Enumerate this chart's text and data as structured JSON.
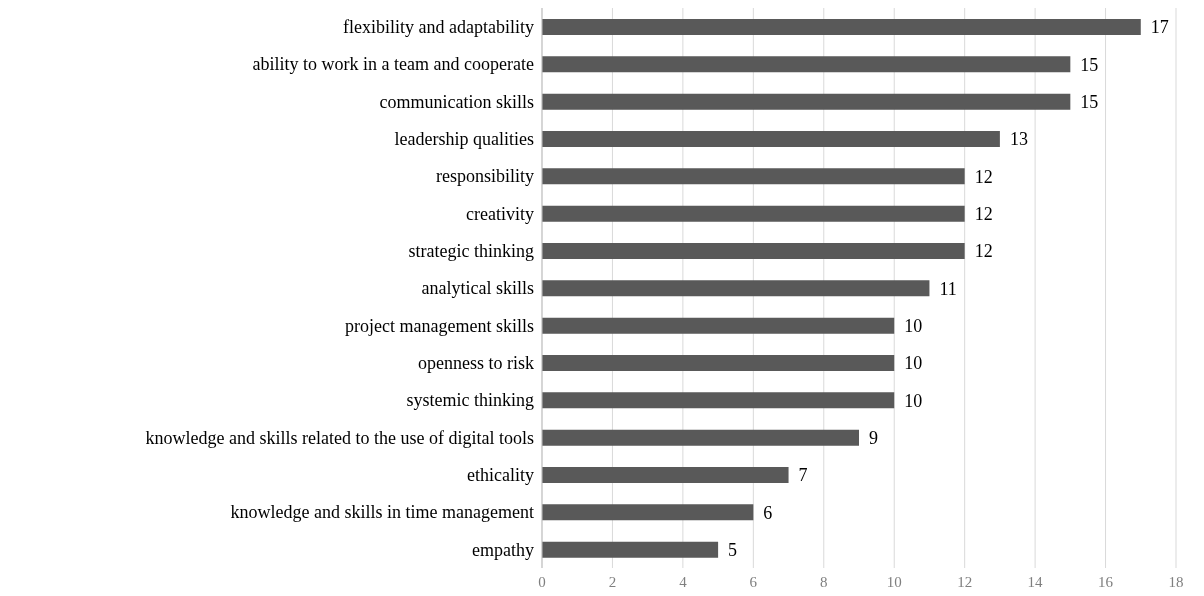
{
  "chart_data": {
    "type": "bar",
    "orientation": "horizontal",
    "categories": [
      "flexibility and adaptability",
      "ability to work in a team and cooperate",
      "communication skills",
      "leadership qualities",
      "responsibility",
      "creativity",
      "strategic thinking",
      "analytical skills",
      "project management skills",
      "openness to risk",
      "systemic thinking",
      "knowledge and skills related to the use of digital tools",
      "ethicality",
      "knowledge and skills in time management",
      "empathy"
    ],
    "values": [
      17,
      15,
      15,
      13,
      12,
      12,
      12,
      11,
      10,
      10,
      10,
      9,
      7,
      6,
      5
    ],
    "color": "#595959",
    "xlim": [
      0,
      18
    ],
    "xticks": [
      0,
      2,
      4,
      6,
      8,
      10,
      12,
      14,
      16,
      18
    ],
    "grid": "x",
    "data_labels": true
  }
}
